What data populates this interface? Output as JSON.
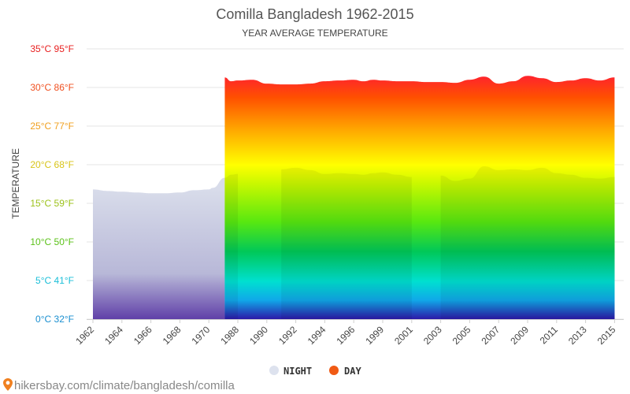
{
  "chart_data": {
    "type": "area",
    "title": "Comilla Bangladesh 1962-2015",
    "subtitle": "YEAR AVERAGE TEMPERATURE",
    "ylabel": "TEMPERATURE",
    "ylim": [
      0,
      35
    ],
    "y_ticks": [
      {
        "value": 0,
        "label": "0°C 32°F",
        "color": "#1a8fd0"
      },
      {
        "value": 5,
        "label": "5°C 41°F",
        "color": "#1bbfd8"
      },
      {
        "value": 10,
        "label": "10°C 50°F",
        "color": "#5cc21a"
      },
      {
        "value": 15,
        "label": "15°C 59°F",
        "color": "#9cc21a"
      },
      {
        "value": 20,
        "label": "20°C 68°F",
        "color": "#d8c419"
      },
      {
        "value": 25,
        "label": "25°C 77°F",
        "color": "#f0a020"
      },
      {
        "value": 30,
        "label": "30°C 86°F",
        "color": "#f05020"
      },
      {
        "value": 35,
        "label": "35°C 95°F",
        "color": "#e82020"
      }
    ],
    "x_tick_labels": [
      "1962",
      "1964",
      "1966",
      "1968",
      "1970",
      "1988",
      "1990",
      "1992",
      "1994",
      "1996",
      "1999",
      "2001",
      "2003",
      "2005",
      "2007",
      "2009",
      "2011",
      "2013",
      "2015"
    ],
    "legend": {
      "night": {
        "label": "NIGHT",
        "color": "#dde2ee"
      },
      "day": {
        "label": "DAY",
        "color": "#f05a14"
      }
    },
    "night_series": {
      "name": "NIGHT",
      "points": [
        [
          1962,
          16.8
        ],
        [
          1963,
          16.6
        ],
        [
          1964,
          16.5
        ],
        [
          1965,
          16.4
        ],
        [
          1966,
          16.3
        ],
        [
          1967,
          16.3
        ],
        [
          1968,
          16.4
        ],
        [
          1969,
          16.7
        ],
        [
          1970,
          16.8
        ],
        [
          1971,
          17.0
        ],
        [
          1986,
          18.3
        ],
        [
          1987,
          18.7
        ],
        [
          1988,
          18.8
        ],
        [
          1991,
          19.4
        ],
        [
          1992,
          19.6
        ],
        [
          1993,
          19.3
        ],
        [
          1994,
          18.8
        ],
        [
          1995,
          18.9
        ],
        [
          1996,
          18.8
        ],
        [
          1997,
          18.7
        ],
        [
          1998,
          18.9
        ],
        [
          1999,
          19.0
        ],
        [
          2000,
          18.7
        ],
        [
          2001,
          18.4
        ],
        [
          2003,
          18.6
        ],
        [
          2004,
          17.9
        ],
        [
          2005,
          18.2
        ],
        [
          2006,
          19.8
        ],
        [
          2007,
          19.3
        ],
        [
          2008,
          19.4
        ],
        [
          2009,
          19.3
        ],
        [
          2010,
          19.6
        ],
        [
          2011,
          18.9
        ],
        [
          2012,
          18.7
        ],
        [
          2013,
          18.3
        ],
        [
          2014,
          18.2
        ],
        [
          2015,
          18.4
        ]
      ]
    },
    "day_series": {
      "name": "DAY",
      "points": [
        [
          1986,
          31.3
        ],
        [
          1987,
          30.8
        ],
        [
          1988,
          30.9
        ],
        [
          1989,
          31.0
        ],
        [
          1990,
          30.5
        ],
        [
          1991,
          30.4
        ],
        [
          1992,
          30.4
        ],
        [
          1993,
          30.5
        ],
        [
          1994,
          30.8
        ],
        [
          1995,
          30.9
        ],
        [
          1996,
          31.0
        ],
        [
          1997,
          30.8
        ],
        [
          1998,
          31.0
        ],
        [
          1999,
          30.9
        ],
        [
          2000,
          30.8
        ],
        [
          2001,
          30.8
        ],
        [
          2002,
          30.7
        ],
        [
          2003,
          30.7
        ],
        [
          2004,
          30.6
        ],
        [
          2005,
          31.0
        ],
        [
          2006,
          31.4
        ],
        [
          2007,
          30.5
        ],
        [
          2008,
          30.8
        ],
        [
          2009,
          31.5
        ],
        [
          2010,
          31.2
        ],
        [
          2011,
          30.7
        ],
        [
          2012,
          30.9
        ],
        [
          2013,
          31.2
        ],
        [
          2014,
          30.9
        ],
        [
          2015,
          31.3
        ]
      ]
    }
  },
  "footer": {
    "credit": "hikersbay.com/climate/bangladesh/comilla"
  }
}
